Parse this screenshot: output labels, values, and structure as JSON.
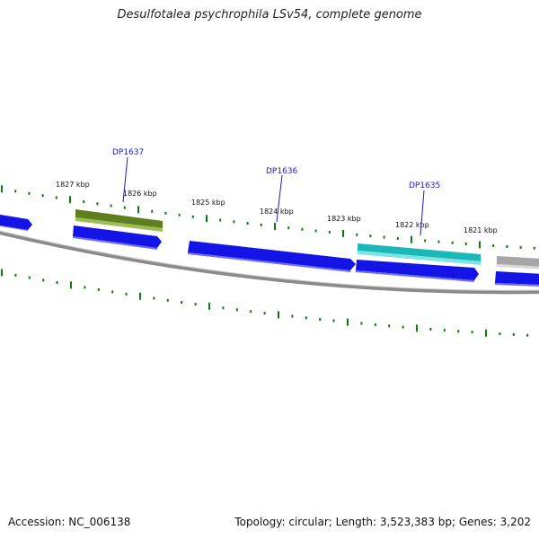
{
  "title": "Desulfotalea psychrophila LSv54, complete genome",
  "footer": {
    "accession": "Accession: NC_006138",
    "summary": "Topology: circular; Length: 3,523,383 bp; Genes: 3,202"
  },
  "colors": {
    "background": "#ffffff",
    "tick": "#0a7d0a",
    "backbone": "#808080",
    "gene_blue": "#1414e6",
    "gene_olive": "#5f7f1e",
    "gene_cyan": "#1ab8b8",
    "gene_gray": "#a6a6a6",
    "label_blue": "#1a1acc"
  },
  "scale_labels": [
    "1827 kbp",
    "1826 kbp",
    "1825 kbp",
    "1824 kbp",
    "1823 kbp",
    "1822 kbp",
    "1821 kbp"
  ],
  "gene_labels": [
    "DP1637",
    "DP1636",
    "DP1635"
  ]
}
